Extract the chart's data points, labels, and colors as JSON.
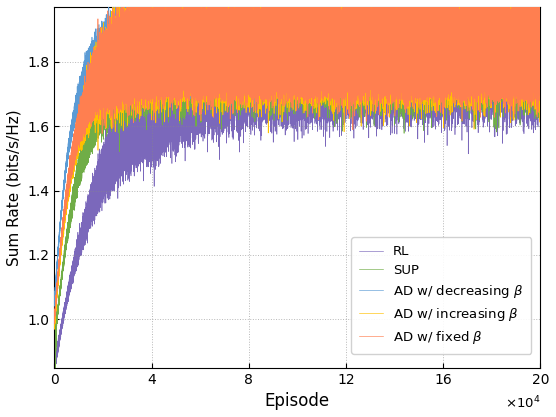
{
  "title": "",
  "xlabel": "Episode",
  "ylabel": "Sum Rate (bits/s/Hz)",
  "xlim": [
    0,
    200000
  ],
  "ylim": [
    0.85,
    1.97
  ],
  "xticks": [
    0,
    40000,
    80000,
    120000,
    160000,
    200000
  ],
  "ytick_vals": [
    1.0,
    1.2,
    1.4,
    1.6,
    1.8
  ],
  "legend_entries": [
    "AD w/ fixed $\\beta$",
    "AD w/ increasing $\\beta$",
    "AD w/ decreasing $\\beta$",
    "SUP",
    "RL"
  ],
  "line_colors": [
    "#FF7F50",
    "#FFC000",
    "#5B9BD5",
    "#70AD47",
    "#7B68BB"
  ],
  "n_episodes": 200000,
  "background_color": "#ffffff",
  "grid_color": "#888888",
  "figsize": [
    5.56,
    4.17
  ],
  "dpi": 100
}
